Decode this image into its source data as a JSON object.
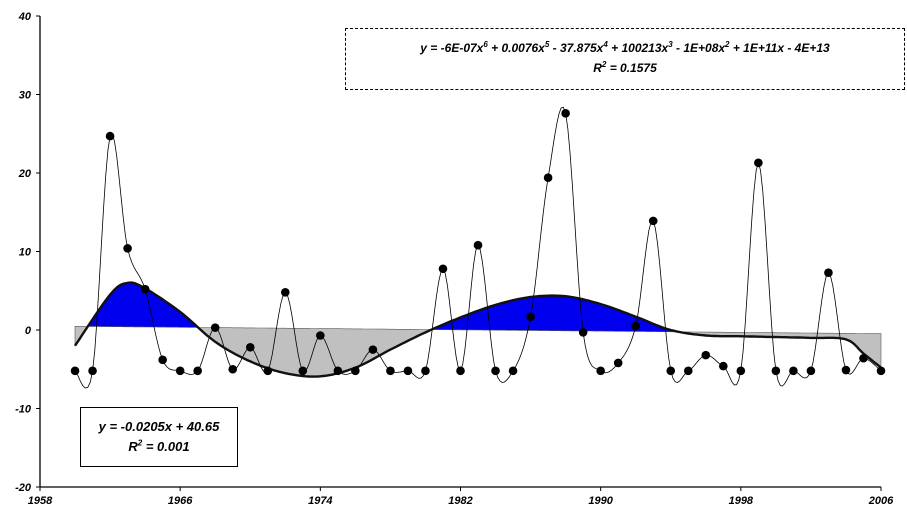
{
  "chart_data": {
    "type": "line",
    "x_ticks": [
      "1958",
      "1966",
      "1974",
      "1982",
      "1990",
      "1998",
      "2006"
    ],
    "y_ticks": [
      "40",
      "30",
      "20",
      "10",
      "0",
      "-10",
      "-20"
    ],
    "xlim": [
      1958,
      2006
    ],
    "ylim": [
      -20,
      40
    ],
    "grid": false,
    "series": [
      {
        "kind": "observed",
        "x": [
          1960,
          1961,
          1962,
          1963,
          1964,
          1965,
          1966,
          1967,
          1968,
          1969,
          1970,
          1971,
          1972,
          1973,
          1974,
          1975,
          1976,
          1977,
          1978,
          1979,
          1980,
          1981,
          1982,
          1983,
          1984,
          1985,
          1986,
          1987,
          1988,
          1989,
          1990,
          1991,
          1992,
          1993,
          1994,
          1995,
          1996,
          1997,
          1998,
          1999,
          2000,
          2001,
          2002,
          2003,
          2004,
          2005,
          2006
        ],
        "y": [
          -5.2,
          -5.2,
          24.7,
          10.4,
          5.2,
          -3.8,
          -5.2,
          -5.2,
          0.3,
          -5.0,
          -2.2,
          -5.2,
          4.8,
          -5.2,
          -0.7,
          -5.2,
          -5.2,
          -2.5,
          -5.2,
          -5.2,
          -5.2,
          7.8,
          -5.2,
          10.8,
          -5.2,
          -5.2,
          1.7,
          19.4,
          27.6,
          -0.3,
          -5.2,
          -4.2,
          0.5,
          13.9,
          -5.2,
          -5.2,
          -3.2,
          -4.6,
          -5.2,
          21.3,
          -5.2,
          -5.2,
          -5.2,
          7.3,
          -5.1,
          -3.6,
          -5.2
        ]
      },
      {
        "kind": "polynomial-trend",
        "x": [
          1960,
          1962,
          1963,
          1964,
          1966,
          1968,
          1970,
          1972,
          1974,
          1976,
          1978,
          1980,
          1982,
          1984,
          1986,
          1988,
          1990,
          1992,
          1994,
          1996,
          1998,
          2000,
          2002,
          2004,
          2005,
          2006
        ],
        "y": [
          -2.0,
          4.5,
          6.0,
          5.3,
          2.3,
          -1.5,
          -4.0,
          -5.5,
          -5.9,
          -4.8,
          -2.5,
          -0.3,
          1.6,
          3.2,
          4.2,
          4.3,
          3.3,
          1.7,
          0.0,
          -0.7,
          -0.8,
          -0.9,
          -1.0,
          -1.2,
          -3.0,
          -4.8
        ]
      },
      {
        "kind": "linear-trend",
        "x": [
          1960,
          2006
        ],
        "y": [
          0.47,
          -0.47
        ]
      }
    ],
    "annotations": {
      "poly_equation": "y = -6E-07x",
      "poly_equation_parts": [
        "y = -6E-07x",
        "6",
        " + 0.0076x",
        "5",
        " - 37.875x",
        "4",
        " + 100213x",
        "3",
        " - 1E+08x",
        "2",
        " + 1E+11x - 4E+13"
      ],
      "poly_r2_prefix": "R",
      "poly_r2_sup": "2",
      "poly_r2_value": " = 0.1575",
      "linear_equation": "y = -0.0205x + 40.65",
      "linear_r2_prefix": "R",
      "linear_r2_sup": "2",
      "linear_r2_value": " = 0.001"
    },
    "colors": {
      "positive_fill": "#0000ee",
      "negative_fill": "#c0c0c0",
      "line": "#000000"
    }
  }
}
